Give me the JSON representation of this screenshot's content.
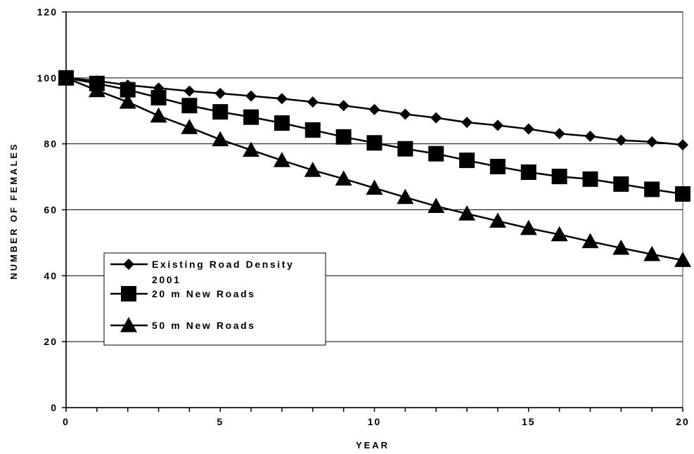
{
  "chart_data": {
    "type": "line",
    "xlabel": "YEAR",
    "ylabel": "NUMBER OF FEMALES",
    "xlim": [
      0,
      20
    ],
    "ylim": [
      0,
      120
    ],
    "x_ticks": [
      "0",
      "5",
      "10",
      "15",
      "20"
    ],
    "y_ticks": [
      "0",
      "20",
      "40",
      "60",
      "80",
      "100",
      "120"
    ],
    "grid": "horizontal",
    "legend_position": "lower-left",
    "x": [
      0,
      1,
      2,
      3,
      4,
      5,
      6,
      7,
      8,
      9,
      10,
      11,
      12,
      13,
      14,
      15,
      16,
      17,
      18,
      19,
      20
    ],
    "series": [
      {
        "name": "Existing Road Density 2001",
        "legend_lines": [
          "Existing Road Density",
          "2001"
        ],
        "marker": "diamond",
        "values": [
          100,
          99.1,
          97.8,
          96.9,
          96.0,
          95.3,
          94.5,
          93.7,
          92.7,
          91.6,
          90.4,
          89.0,
          87.9,
          86.5,
          85.6,
          84.5,
          83.1,
          82.3,
          81.1,
          80.6,
          79.7
        ]
      },
      {
        "name": "20 m New Roads",
        "legend_lines": [
          "20 m New Roads"
        ],
        "marker": "square",
        "values": [
          100,
          98.3,
          96.4,
          94.0,
          91.6,
          89.7,
          88.1,
          86.3,
          84.2,
          82.1,
          80.3,
          78.5,
          77.0,
          75.0,
          73.1,
          71.4,
          70.1,
          69.3,
          67.8,
          66.2,
          64.8
        ]
      },
      {
        "name": "50 m New Roads",
        "legend_lines": [
          "50 m New Roads"
        ],
        "marker": "triangle",
        "values": [
          100,
          96.2,
          92.7,
          88.5,
          85.0,
          81.3,
          78.1,
          75.0,
          72.0,
          69.4,
          66.6,
          63.8,
          61.1,
          58.8,
          56.6,
          54.4,
          52.5,
          50.4,
          48.4,
          46.5,
          44.7
        ]
      }
    ]
  }
}
